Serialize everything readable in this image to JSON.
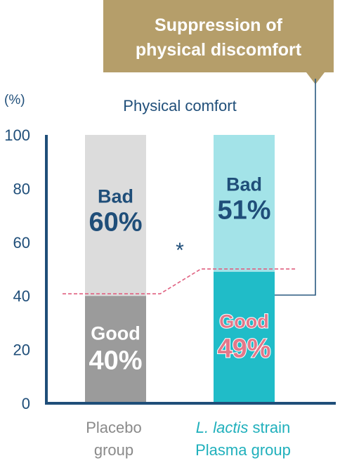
{
  "callout": {
    "line1": "Suppression of",
    "line2": "physical discomfort"
  },
  "y_unit": "(%)",
  "chart_data": {
    "type": "bar",
    "stacked": true,
    "title": "Physical comfort",
    "ylim": [
      0,
      100
    ],
    "yticks": [
      0,
      20,
      40,
      60,
      80,
      100
    ],
    "categories": [
      {
        "line1": "Placebo",
        "line1_italic": "",
        "line2": "group"
      },
      {
        "line1": "strain",
        "line1_italic": "L. lactis",
        "line2": "Plasma group"
      }
    ],
    "series": [
      {
        "name": "Good",
        "values": [
          40,
          49
        ],
        "labels": [
          "40%",
          "49%"
        ]
      },
      {
        "name": "Bad",
        "values": [
          60,
          51
        ],
        "labels": [
          "60%",
          "51%"
        ]
      }
    ],
    "significance": "*",
    "colors": {
      "placebo_good": "#9b9b9b",
      "placebo_bad": "#dcdcdc",
      "plasma_good": "#20bcc8",
      "plasma_bad": "#a3e3e8",
      "axis": "#1f4e79",
      "label_dark": "#1f4e79",
      "label_light": "#ffffff",
      "label_pink": "#e3788a",
      "plasma_category": "#20b0bc",
      "placebo_category": "#8a8a8a",
      "callout_bg": "#b59e6a",
      "dashed": "#e06080",
      "connector": "#2a5a80"
    }
  }
}
